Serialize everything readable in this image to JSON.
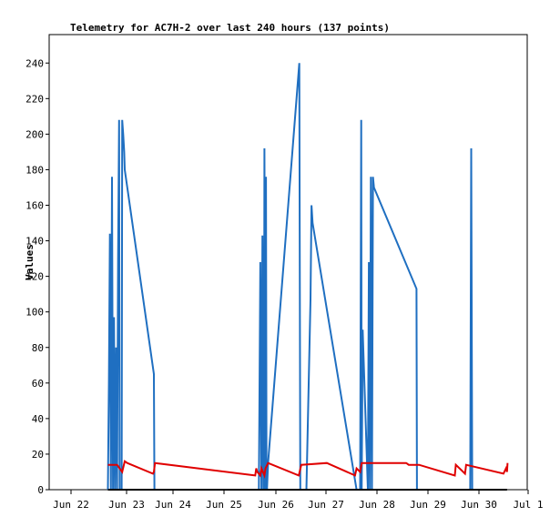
{
  "chart_data": {
    "type": "line",
    "title": "Telemetry for AC7H-2 over last 240 hours (137 points)",
    "xlabel": "",
    "ylabel": "Values",
    "x_ticks": [
      "Jun 22",
      "Jun 23",
      "Jun 24",
      "Jun 25",
      "Jun 26",
      "Jun 27",
      "Jun 28",
      "Jun 29",
      "Jun 30",
      "Jul 1"
    ],
    "x_unit": "days since Jun 22 00:00",
    "xlim": [
      0,
      9
    ],
    "ylim": [
      0,
      256
    ],
    "y_ticks": [
      0,
      20,
      40,
      60,
      80,
      100,
      120,
      140,
      160,
      180,
      200,
      220,
      240
    ],
    "grid": false,
    "colors": {
      "blue": "#1f6fc1",
      "red": "#e00000",
      "black": "#000000"
    },
    "series": [
      {
        "color": "#1f6fc1",
        "x": [
          0.72,
          0.74,
          0.76,
          0.78,
          0.8,
          0.82,
          0.84,
          0.86,
          0.88,
          0.9,
          0.92,
          0.94,
          0.95,
          0.97,
          0.99,
          1.0,
          1.02,
          1.04,
          1.05,
          1.62,
          1.63,
          1.64,
          3.67,
          3.7,
          3.72,
          3.74,
          3.76,
          3.77,
          3.78,
          3.8,
          3.81,
          3.82,
          3.83,
          3.85,
          4.46,
          4.48,
          4.5,
          4.52,
          4.53,
          4.6,
          4.68,
          4.7,
          4.72,
          5.58,
          5.65,
          5.67,
          5.68,
          5.7,
          5.8,
          5.82,
          5.84,
          5.86,
          5.88,
          5.9,
          5.92,
          6.75,
          6.76,
          6.78,
          7.8,
          7.82,
          7.84
        ],
        "y": [
          0,
          60,
          144,
          0,
          176,
          0,
          97,
          0,
          80,
          0,
          130,
          208,
          0,
          0,
          0,
          208,
          200,
          190,
          180,
          65,
          0,
          0,
          0,
          128,
          0,
          143,
          0,
          0,
          192,
          0,
          176,
          0,
          0,
          15,
          240,
          0,
          0,
          0,
          0,
          0,
          107,
          160,
          150,
          0,
          0,
          208,
          0,
          90,
          0,
          128,
          0,
          176,
          0,
          176,
          170,
          113,
          0,
          0,
          0,
          192,
          0
        ]
      },
      {
        "color": "#e00000",
        "x": [
          0.72,
          0.9,
          1.0,
          1.05,
          1.1,
          1.6,
          1.62,
          1.64,
          3.6,
          3.62,
          3.64,
          3.7,
          3.72,
          3.78,
          3.8,
          3.85,
          4.45,
          4.5,
          5.0,
          5.55,
          5.58,
          5.65,
          5.68,
          6.55,
          6.6,
          6.8,
          7.5,
          7.52,
          7.7,
          7.72,
          8.45,
          8.5,
          8.52,
          8.53
        ],
        "y": [
          14,
          14,
          10,
          16,
          15,
          9,
          10,
          15,
          8,
          12,
          10,
          8,
          12,
          8,
          12,
          15,
          8,
          14,
          15,
          8,
          12,
          10,
          15,
          15,
          14,
          14,
          8,
          14,
          9,
          14,
          9,
          12,
          10,
          15
        ]
      },
      {
        "color": "#000000",
        "x": [
          0.72,
          8.52
        ],
        "y": [
          0,
          0
        ]
      }
    ]
  }
}
